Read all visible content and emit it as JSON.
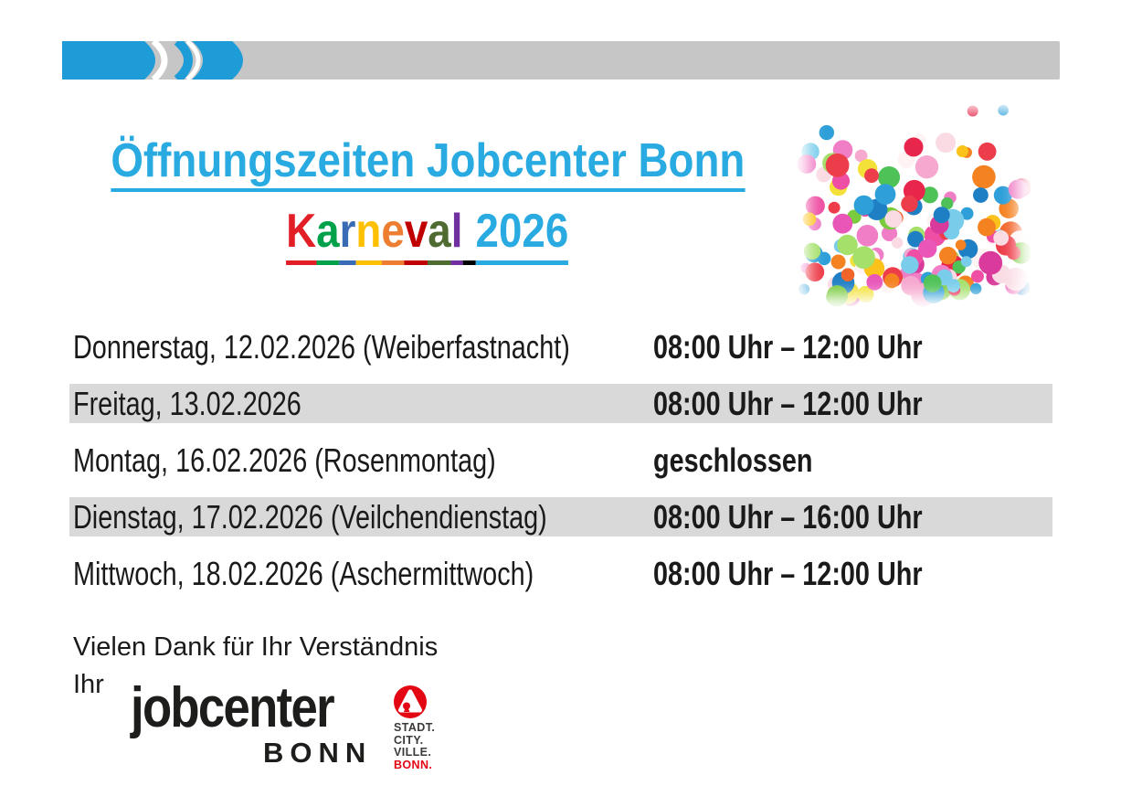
{
  "colors": {
    "accent-cyan": "#29ABE2",
    "bar-blue": "#1E9CD8",
    "bar-gray": "#C6C6C6",
    "row-shade": "#D9D9D9",
    "logo-red": "#E30613",
    "logo-dark": "#3A3A39",
    "ink": "#1A1A1A"
  },
  "title": {
    "text": "Öffnungszeiten Jobcenter Bonn"
  },
  "subtitle": {
    "letters": [
      {
        "ch": "K",
        "color": "#E21E26"
      },
      {
        "ch": "a",
        "color": "#00A14B"
      },
      {
        "ch": "r",
        "color": "#3A6BB5"
      },
      {
        "ch": "n",
        "color": "#FFC000"
      },
      {
        "ch": "e",
        "color": "#ED7D31"
      },
      {
        "ch": "v",
        "color": "#C00000"
      },
      {
        "ch": "a",
        "color": "#4F6B31"
      },
      {
        "ch": "l",
        "color": "#7030A0"
      },
      {
        "ch": " ",
        "color": "#000000"
      }
    ],
    "year": {
      "text": "2026",
      "color": "#29ABE2"
    }
  },
  "confetti": {
    "seed": 42,
    "count": 150,
    "palette": [
      "#EE3D4A",
      "#E8254B",
      "#F2652A",
      "#F58220",
      "#FBC21B",
      "#F3E13A",
      "#7BCB3F",
      "#4FC257",
      "#A5E06B",
      "#2E9FD8",
      "#1F7FC4",
      "#79CDEB",
      "#EE4FA4",
      "#F07EC6",
      "#F6A8CE",
      "#FADBE4",
      "#FFF3F4",
      "#E956B8",
      "#D93A9B"
    ]
  },
  "schedule": {
    "rows": [
      {
        "day": "Donnerstag, 12.02.2026 (Weiberfastnacht)",
        "hours": "08:00 Uhr – 12:00 Uhr",
        "shaded": false
      },
      {
        "day": "Freitag, 13.02.2026",
        "hours": "08:00 Uhr – 12:00 Uhr",
        "shaded": true
      },
      {
        "day": "Montag, 16.02.2026 (Rosenmontag)",
        "hours": "geschlossen",
        "shaded": false
      },
      {
        "day": "Dienstag, 17.02.2026 (Veilchendienstag)",
        "hours": "08:00 Uhr – 16:00 Uhr",
        "shaded": true
      },
      {
        "day": "Mittwoch, 18.02.2026 (Aschermittwoch)",
        "hours": "08:00 Uhr – 12:00 Uhr",
        "shaded": false
      }
    ]
  },
  "closing": {
    "thanks": "Vielen Dank für Ihr Verständnis",
    "signoff": "Ihr"
  },
  "logo": {
    "wordmark": "jobcenter",
    "city": "BONN",
    "stadt_lines": [
      {
        "text": "STADT.",
        "color": "#3A3A39"
      },
      {
        "text": "CITY.",
        "color": "#3A3A39"
      },
      {
        "text": "VILLE.",
        "color": "#3A3A39"
      },
      {
        "text": "BONN.",
        "color": "#E30613"
      }
    ]
  }
}
